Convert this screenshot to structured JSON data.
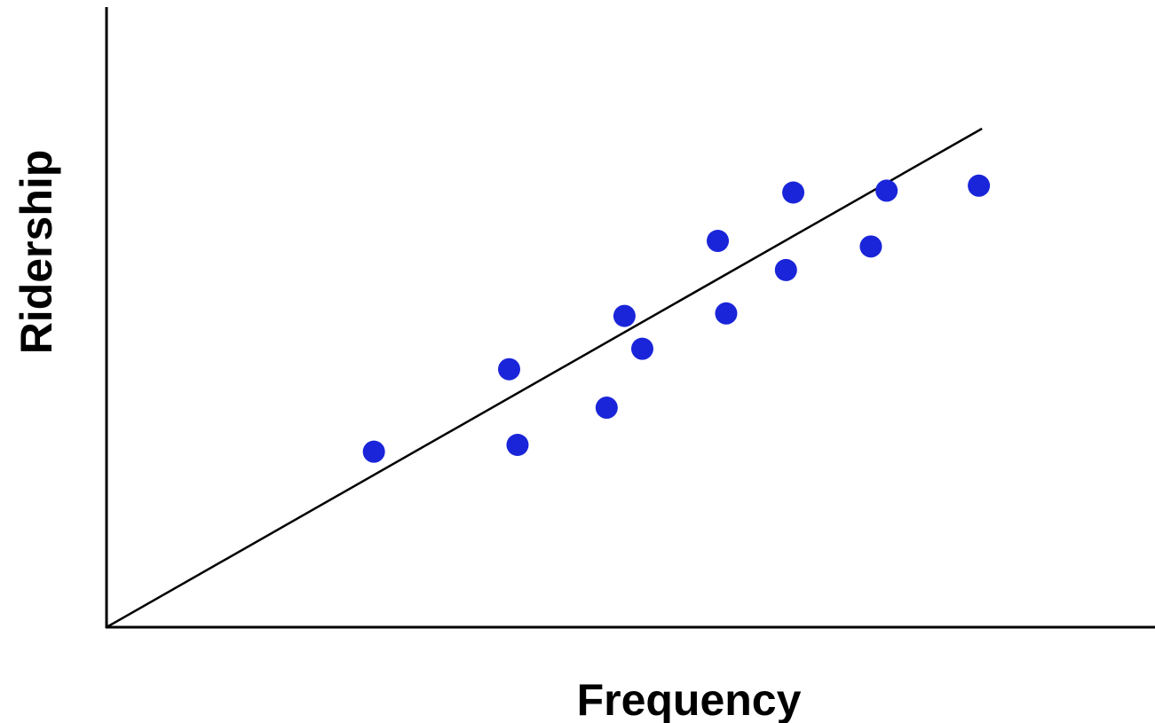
{
  "chart_data": {
    "type": "scatter",
    "title": "",
    "xlabel": "Frequency",
    "ylabel": "Ridership",
    "xlim": [
      0,
      100
    ],
    "ylim": [
      0,
      100
    ],
    "grid": false,
    "show_ticks": false,
    "point_color": "#1a25d9",
    "trendline": {
      "x": [
        0,
        83.5
      ],
      "y": [
        0,
        80.4
      ]
    },
    "points": [
      {
        "x": 25.5,
        "y": 28.3
      },
      {
        "x": 38.4,
        "y": 41.6
      },
      {
        "x": 39.2,
        "y": 29.4
      },
      {
        "x": 47.7,
        "y": 35.4
      },
      {
        "x": 49.4,
        "y": 50.2
      },
      {
        "x": 51.1,
        "y": 44.9
      },
      {
        "x": 58.3,
        "y": 62.3
      },
      {
        "x": 59.1,
        "y": 50.6
      },
      {
        "x": 64.8,
        "y": 57.6
      },
      {
        "x": 65.5,
        "y": 70.1
      },
      {
        "x": 72.9,
        "y": 61.4
      },
      {
        "x": 74.4,
        "y": 70.4
      },
      {
        "x": 83.2,
        "y": 71.2
      }
    ]
  }
}
